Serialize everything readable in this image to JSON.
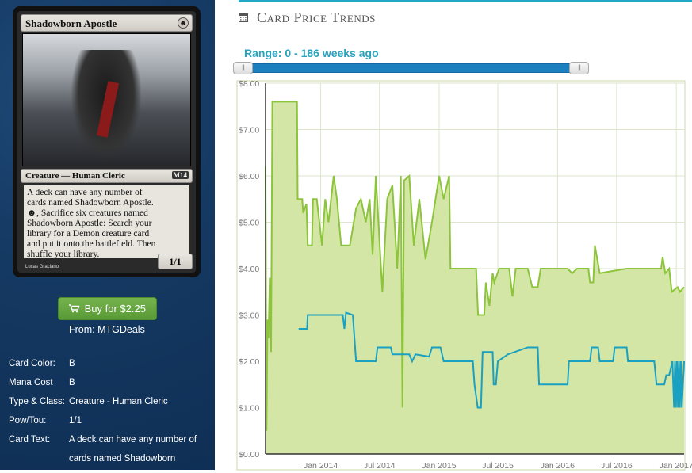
{
  "card": {
    "name": "Shadowborn Apostle",
    "type_line": "Creature — Human Cleric",
    "rules_text": [
      "A deck can have any number of",
      "cards named Shadowborn Apostle.",
      "☻, Sacrifice six creatures named",
      "Shadowborn Apostle: Search your",
      "library for a Demon creature card",
      "and put it onto the battlefield. Then",
      "shuffle your library."
    ],
    "power_toughness": "1/1",
    "artist": "Lucas Graciano",
    "set_symbol": "M14"
  },
  "buy": {
    "label": "Buy for $2.25",
    "from": "From: MTGDeals"
  },
  "properties": [
    {
      "key": "Card Color:",
      "value": "B"
    },
    {
      "key": "Mana Cost",
      "value": "B"
    },
    {
      "key": "Type & Class:",
      "value": "Creature - Human Cleric"
    },
    {
      "key": "Pow/Tou:",
      "value": "1/1"
    },
    {
      "key": "Card Text:",
      "value": "A deck can have any number of"
    }
  ],
  "card_text_cont": "cards named Shadowborn",
  "section": {
    "title": "Card Price Trends",
    "icon": "calendar-icon"
  },
  "range_label": "Range: 0 - 186 weeks ago",
  "slider": {
    "low_fraction": 0.0,
    "high_fraction": 1.0
  },
  "colors": {
    "accent": "#22a7c4",
    "buy_green": "#5a9a36",
    "series_high": "#8cc43c",
    "series_fill": "#d4e6a5",
    "series_low": "#1aa0c0"
  },
  "chart_data": {
    "type": "line",
    "ylabel": "",
    "ylim": [
      0,
      8
    ],
    "yticks": [
      "$0.00",
      "$1.00",
      "$2.00",
      "$3.00",
      "$4.00",
      "$5.00",
      "$6.00",
      "$7.00",
      "$8.00"
    ],
    "xlim": [
      "2013-07-15",
      "2017-01-25"
    ],
    "xticks": [
      {
        "date": "2014-01-01",
        "label": "Jan 2014"
      },
      {
        "date": "2014-07-01",
        "label": "Jul 2014"
      },
      {
        "date": "2015-01-01",
        "label": "Jan 2015"
      },
      {
        "date": "2015-07-01",
        "label": "Jul 2015"
      },
      {
        "date": "2016-01-01",
        "label": "Jan 2016"
      },
      {
        "date": "2016-07-01",
        "label": "Jul 2016"
      },
      {
        "date": "2017-01-01",
        "label": "Jan 2017"
      }
    ],
    "grid": true,
    "series": [
      {
        "style": "area",
        "points": [
          [
            "2013-07-15",
            6.2
          ],
          [
            "2013-07-18",
            0.5
          ],
          [
            "2013-07-21",
            2.9
          ],
          [
            "2013-07-24",
            2.5
          ],
          [
            "2013-07-28",
            3.8
          ],
          [
            "2013-08-01",
            2.2
          ],
          [
            "2013-08-05",
            7.6
          ],
          [
            "2013-10-20",
            7.6
          ],
          [
            "2013-10-22",
            5.5
          ],
          [
            "2013-11-05",
            5.5
          ],
          [
            "2013-11-08",
            5.2
          ],
          [
            "2013-11-18",
            5.4
          ],
          [
            "2013-11-22",
            4.5
          ],
          [
            "2013-12-05",
            4.5
          ],
          [
            "2013-12-08",
            5.5
          ],
          [
            "2013-12-20",
            5.5
          ],
          [
            "2014-01-05",
            4.5
          ],
          [
            "2014-01-15",
            5.5
          ],
          [
            "2014-01-25",
            5.0
          ],
          [
            "2014-02-10",
            6.0
          ],
          [
            "2014-02-20",
            5.5
          ],
          [
            "2014-03-05",
            4.5
          ],
          [
            "2014-04-01",
            4.5
          ],
          [
            "2014-04-20",
            5.3
          ],
          [
            "2014-05-05",
            5.5
          ],
          [
            "2014-05-20",
            5.0
          ],
          [
            "2014-06-01",
            5.5
          ],
          [
            "2014-06-10",
            4.3
          ],
          [
            "2014-06-20",
            6.0
          ],
          [
            "2014-07-10",
            3.5
          ],
          [
            "2014-07-25",
            5.5
          ],
          [
            "2014-08-10",
            5.8
          ],
          [
            "2014-08-25",
            4.0
          ],
          [
            "2014-09-05",
            6.0
          ],
          [
            "2014-09-10",
            1.0
          ],
          [
            "2014-09-15",
            5.9
          ],
          [
            "2014-10-01",
            6.0
          ],
          [
            "2014-10-15",
            4.5
          ],
          [
            "2014-11-01",
            5.5
          ],
          [
            "2014-11-20",
            4.2
          ],
          [
            "2014-12-10",
            5.0
          ],
          [
            "2015-01-01",
            6.0
          ],
          [
            "2015-01-15",
            5.5
          ],
          [
            "2015-02-01",
            6.0
          ],
          [
            "2015-02-05",
            4.0
          ],
          [
            "2015-04-25",
            4.0
          ],
          [
            "2015-05-01",
            3.0
          ],
          [
            "2015-05-20",
            3.0
          ],
          [
            "2015-05-25",
            3.7
          ],
          [
            "2015-06-05",
            3.2
          ],
          [
            "2015-06-15",
            3.9
          ],
          [
            "2015-06-20",
            3.7
          ],
          [
            "2015-07-05",
            4.0
          ],
          [
            "2015-08-05",
            4.0
          ],
          [
            "2015-08-15",
            3.4
          ],
          [
            "2015-08-25",
            4.0
          ],
          [
            "2015-10-01",
            4.0
          ],
          [
            "2015-10-15",
            3.6
          ],
          [
            "2015-11-01",
            3.6
          ],
          [
            "2015-11-10",
            4.0
          ],
          [
            "2016-02-01",
            4.0
          ],
          [
            "2016-02-15",
            3.9
          ],
          [
            "2016-03-01",
            4.0
          ],
          [
            "2016-04-05",
            4.0
          ],
          [
            "2016-04-10",
            3.7
          ],
          [
            "2016-04-20",
            3.7
          ],
          [
            "2016-04-25",
            4.5
          ],
          [
            "2016-05-10",
            3.9
          ],
          [
            "2016-08-01",
            4.0
          ],
          [
            "2016-11-15",
            4.0
          ],
          [
            "2016-11-20",
            4.25
          ],
          [
            "2016-11-28",
            3.9
          ],
          [
            "2016-12-10",
            4.0
          ],
          [
            "2016-12-18",
            3.5
          ],
          [
            "2017-01-05",
            3.6
          ],
          [
            "2017-01-12",
            3.5
          ],
          [
            "2017-01-25",
            3.6
          ]
        ]
      },
      {
        "style": "line",
        "points": [
          [
            "2013-10-25",
            2.7
          ],
          [
            "2013-11-20",
            2.7
          ],
          [
            "2013-11-22",
            3.0
          ],
          [
            "2014-03-10",
            3.0
          ],
          [
            "2014-03-15",
            2.7
          ],
          [
            "2014-03-20",
            3.05
          ],
          [
            "2014-04-10",
            3.0
          ],
          [
            "2014-04-20",
            2.0
          ],
          [
            "2014-06-20",
            2.0
          ],
          [
            "2014-06-25",
            2.3
          ],
          [
            "2014-08-05",
            2.3
          ],
          [
            "2014-08-10",
            2.15
          ],
          [
            "2014-10-01",
            2.15
          ],
          [
            "2014-10-10",
            2.0
          ],
          [
            "2014-10-20",
            2.15
          ],
          [
            "2014-12-01",
            2.1
          ],
          [
            "2014-12-10",
            2.3
          ],
          [
            "2015-01-05",
            2.3
          ],
          [
            "2015-01-15",
            2.0
          ],
          [
            "2015-04-15",
            2.0
          ],
          [
            "2015-04-20",
            1.5
          ],
          [
            "2015-04-30",
            1.0
          ],
          [
            "2015-05-10",
            1.0
          ],
          [
            "2015-05-15",
            2.2
          ],
          [
            "2015-06-15",
            2.2
          ],
          [
            "2015-06-18",
            1.5
          ],
          [
            "2015-06-25",
            1.5
          ],
          [
            "2015-07-01",
            2.0
          ],
          [
            "2015-08-01",
            2.15
          ],
          [
            "2015-10-01",
            2.3
          ],
          [
            "2015-11-01",
            2.3
          ],
          [
            "2015-11-05",
            1.5
          ],
          [
            "2016-02-01",
            1.5
          ],
          [
            "2016-02-05",
            2.0
          ],
          [
            "2016-04-10",
            2.0
          ],
          [
            "2016-04-15",
            2.3
          ],
          [
            "2016-05-05",
            2.3
          ],
          [
            "2016-05-10",
            2.0
          ],
          [
            "2016-06-20",
            2.0
          ],
          [
            "2016-06-25",
            2.3
          ],
          [
            "2016-08-01",
            2.3
          ],
          [
            "2016-08-05",
            2.0
          ],
          [
            "2016-10-25",
            2.0
          ],
          [
            "2016-11-01",
            1.5
          ],
          [
            "2016-11-25",
            1.5
          ],
          [
            "2016-12-01",
            1.7
          ],
          [
            "2016-12-10",
            1.7
          ],
          [
            "2016-12-20",
            2.0
          ],
          [
            "2016-12-25",
            1.0
          ],
          [
            "2016-12-28",
            2.0
          ],
          [
            "2016-12-31",
            1.0
          ],
          [
            "2017-01-03",
            2.0
          ],
          [
            "2017-01-06",
            1.0
          ],
          [
            "2017-01-09",
            2.0
          ],
          [
            "2017-01-12",
            1.0
          ],
          [
            "2017-01-15",
            2.0
          ],
          [
            "2017-01-18",
            1.0
          ],
          [
            "2017-01-25",
            2.0
          ]
        ]
      }
    ]
  }
}
